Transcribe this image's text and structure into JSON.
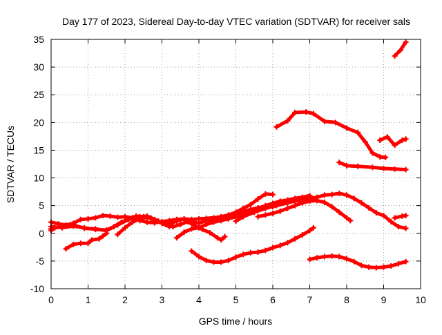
{
  "chart_data": {
    "type": "scatter",
    "title": "Day 177 of 2023, Sidereal Day-to-day VTEC variation (SDTVAR) for receiver sals",
    "xlabel": "GPS time / hours",
    "ylabel": "SDTVAR / TECUs",
    "xlim": [
      0,
      10
    ],
    "ylim": [
      -10,
      35
    ],
    "xticks": [
      "0",
      "1",
      "2",
      "3",
      "4",
      "5",
      "6",
      "7",
      "8",
      "9",
      "10"
    ],
    "yticks": [
      "-10",
      "-5",
      "0",
      "5",
      "10",
      "15",
      "20",
      "25",
      "30",
      "35"
    ],
    "grid": true,
    "legend": "none",
    "color": "#ff0000",
    "series": [
      {
        "name": "s1",
        "points": [
          [
            9.3,
            32
          ],
          [
            9.45,
            33
          ],
          [
            9.6,
            34.5
          ]
        ]
      },
      {
        "name": "s2",
        "points": [
          [
            6.1,
            19.2
          ],
          [
            6.4,
            20.3
          ],
          [
            6.6,
            21.8
          ],
          [
            6.9,
            21.9
          ],
          [
            7.1,
            21.6
          ],
          [
            7.4,
            20.2
          ],
          [
            7.7,
            20.0
          ],
          [
            8.0,
            19.0
          ],
          [
            8.3,
            18.2
          ],
          [
            8.5,
            16.5
          ],
          [
            8.7,
            14.5
          ],
          [
            8.9,
            13.8
          ],
          [
            9.05,
            13.7
          ]
        ]
      },
      {
        "name": "s3",
        "points": [
          [
            8.9,
            16.8
          ],
          [
            9.1,
            17.4
          ],
          [
            9.3,
            15.9
          ],
          [
            9.5,
            16.8
          ],
          [
            9.6,
            17
          ]
        ]
      },
      {
        "name": "s4",
        "points": [
          [
            7.8,
            12.8
          ],
          [
            8.0,
            12.2
          ],
          [
            8.3,
            12.1
          ],
          [
            8.7,
            11.9
          ],
          [
            9.0,
            11.7
          ],
          [
            9.3,
            11.6
          ],
          [
            9.6,
            11.5
          ]
        ]
      },
      {
        "name": "s5",
        "points": [
          [
            0.0,
            2.0
          ],
          [
            0.2,
            1.7
          ],
          [
            0.4,
            1.5
          ],
          [
            0.6,
            1.8
          ],
          [
            0.8,
            2.5
          ],
          [
            1.0,
            2.6
          ],
          [
            1.2,
            2.8
          ],
          [
            1.4,
            3.2
          ],
          [
            1.6,
            3.1
          ],
          [
            1.8,
            2.9
          ],
          [
            2.0,
            3.0
          ],
          [
            2.2,
            2.8
          ],
          [
            2.4,
            2.3
          ],
          [
            2.6,
            2.0
          ],
          [
            2.8,
            1.9
          ],
          [
            3.0,
            2.1
          ],
          [
            3.2,
            2.3
          ],
          [
            3.4,
            2.5
          ],
          [
            3.6,
            2.6
          ],
          [
            3.8,
            2.5
          ],
          [
            4.0,
            2.6
          ],
          [
            4.2,
            2.7
          ],
          [
            4.4,
            2.8
          ],
          [
            4.6,
            3.0
          ],
          [
            4.8,
            3.3
          ],
          [
            5.0,
            3.8
          ],
          [
            5.2,
            4.5
          ],
          [
            5.4,
            5.2
          ],
          [
            5.6,
            6.2
          ],
          [
            5.8,
            7.1
          ],
          [
            6.0,
            7.0
          ]
        ]
      },
      {
        "name": "s6",
        "points": [
          [
            0.0,
            1.2
          ],
          [
            0.3,
            1.0
          ],
          [
            0.6,
            1.3
          ],
          [
            0.9,
            1.0
          ],
          [
            1.2,
            0.7
          ],
          [
            1.5,
            0.6
          ],
          [
            1.7,
            1.2
          ],
          [
            1.9,
            2.0
          ],
          [
            2.1,
            2.6
          ],
          [
            2.3,
            3.1
          ],
          [
            2.5,
            3.0
          ],
          [
            2.7,
            2.8
          ],
          [
            2.9,
            2.2
          ],
          [
            3.1,
            1.6
          ],
          [
            3.3,
            1.2
          ],
          [
            3.5,
            1.6
          ],
          [
            3.7,
            2.1
          ],
          [
            3.9,
            1.3
          ],
          [
            4.1,
            0.7
          ],
          [
            4.3,
            0.1
          ],
          [
            4.5,
            -0.8
          ],
          [
            4.6,
            -1.2
          ],
          [
            4.7,
            -0.6
          ]
        ]
      },
      {
        "name": "s7",
        "points": [
          [
            0.0,
            0.8
          ],
          [
            0.3,
            1.3
          ],
          [
            0.6,
            1.5
          ],
          [
            0.9,
            0.9
          ],
          [
            1.2,
            0.8
          ],
          [
            1.5,
            0.5
          ],
          [
            1.8,
            1.5
          ],
          [
            2.1,
            2.5
          ],
          [
            2.4,
            3.0
          ],
          [
            2.6,
            3.1
          ],
          [
            2.8,
            2.5
          ],
          [
            3.0,
            2.0
          ],
          [
            3.2,
            1.7
          ],
          [
            3.4,
            2.2
          ],
          [
            3.6,
            2.6
          ],
          [
            3.8,
            2.1
          ],
          [
            4.0,
            1.8
          ],
          [
            4.2,
            2.3
          ],
          [
            4.4,
            2.5
          ],
          [
            4.6,
            2.9
          ],
          [
            4.8,
            3.2
          ],
          [
            5.0,
            3.4
          ],
          [
            5.2,
            3.9
          ],
          [
            5.4,
            4.3
          ],
          [
            5.6,
            4.6
          ],
          [
            5.8,
            4.9
          ],
          [
            6.0,
            4.8
          ]
        ]
      },
      {
        "name": "s8",
        "points": [
          [
            0.0,
            0.5
          ],
          [
            0.1,
            1.0
          ]
        ]
      },
      {
        "name": "s9",
        "points": [
          [
            0.4,
            -2.8
          ],
          [
            0.6,
            -2.0
          ],
          [
            0.8,
            -1.8
          ],
          [
            1.0,
            -1.8
          ],
          [
            1.1,
            -1.2
          ],
          [
            1.3,
            -1.0
          ],
          [
            1.4,
            -0.5
          ],
          [
            1.5,
            0.0
          ]
        ]
      },
      {
        "name": "s10",
        "points": [
          [
            1.8,
            -0.2
          ],
          [
            2.0,
            1.0
          ],
          [
            2.2,
            2.0
          ],
          [
            2.4,
            2.6
          ],
          [
            2.6,
            2.9
          ],
          [
            2.8,
            2.4
          ],
          [
            3.0,
            1.8
          ],
          [
            3.2,
            1.2
          ]
        ]
      },
      {
        "name": "s11",
        "points": [
          [
            3.4,
            -0.8
          ],
          [
            3.6,
            0.2
          ],
          [
            3.8,
            0.8
          ],
          [
            4.0,
            1.0
          ],
          [
            4.2,
            1.6
          ],
          [
            4.4,
            2.0
          ],
          [
            4.6,
            2.3
          ],
          [
            4.8,
            2.6
          ],
          [
            5.0,
            3.0
          ],
          [
            5.2,
            3.5
          ],
          [
            5.4,
            4.0
          ],
          [
            5.6,
            4.5
          ],
          [
            5.8,
            5.0
          ],
          [
            6.0,
            5.4
          ],
          [
            6.2,
            5.8
          ],
          [
            6.4,
            6.0
          ],
          [
            6.6,
            6.3
          ],
          [
            6.8,
            6.5
          ],
          [
            7.0,
            6.8
          ]
        ]
      },
      {
        "name": "s12",
        "points": [
          [
            5.0,
            2.2
          ],
          [
            5.2,
            3.0
          ],
          [
            5.5,
            3.8
          ],
          [
            5.8,
            4.5
          ],
          [
            6.1,
            5.0
          ],
          [
            6.4,
            5.5
          ],
          [
            6.6,
            5.8
          ],
          [
            6.8,
            6.0
          ],
          [
            7.0,
            6.3
          ],
          [
            7.2,
            6.5
          ],
          [
            7.4,
            6.9
          ],
          [
            7.6,
            7.0
          ],
          [
            7.8,
            7.2
          ],
          [
            8.0,
            6.9
          ],
          [
            8.2,
            6.3
          ],
          [
            8.4,
            5.5
          ],
          [
            8.6,
            4.6
          ],
          [
            8.8,
            3.7
          ],
          [
            9.0,
            3.2
          ],
          [
            9.2,
            2.1
          ],
          [
            9.4,
            1.2
          ],
          [
            9.6,
            0.9
          ]
        ]
      },
      {
        "name": "s13",
        "points": [
          [
            5.6,
            3.0
          ],
          [
            5.8,
            3.3
          ],
          [
            6.0,
            3.6
          ],
          [
            6.2,
            4.0
          ],
          [
            6.4,
            4.5
          ],
          [
            6.6,
            5.0
          ],
          [
            6.8,
            5.5
          ],
          [
            7.0,
            5.8
          ],
          [
            7.2,
            5.9
          ],
          [
            7.4,
            5.6
          ],
          [
            7.6,
            4.8
          ],
          [
            7.8,
            3.8
          ],
          [
            8.0,
            2.8
          ],
          [
            8.1,
            2.3
          ]
        ]
      },
      {
        "name": "s14",
        "points": [
          [
            9.3,
            2.8
          ],
          [
            9.5,
            3.1
          ],
          [
            9.6,
            3.2
          ]
        ]
      },
      {
        "name": "s15",
        "points": [
          [
            3.8,
            -3.2
          ],
          [
            4.0,
            -4.2
          ],
          [
            4.2,
            -4.9
          ],
          [
            4.4,
            -5.2
          ],
          [
            4.6,
            -5.2
          ],
          [
            4.8,
            -4.9
          ],
          [
            5.0,
            -4.3
          ],
          [
            5.2,
            -3.8
          ],
          [
            5.4,
            -3.5
          ],
          [
            5.6,
            -3.4
          ],
          [
            5.8,
            -3.1
          ],
          [
            6.0,
            -2.6
          ],
          [
            6.2,
            -2.2
          ],
          [
            6.4,
            -1.7
          ],
          [
            6.6,
            -1.0
          ],
          [
            6.8,
            -0.3
          ],
          [
            7.0,
            0.5
          ],
          [
            7.1,
            1.0
          ]
        ]
      },
      {
        "name": "s16",
        "points": [
          [
            7.0,
            -4.7
          ],
          [
            7.2,
            -4.4
          ],
          [
            7.4,
            -4.2
          ],
          [
            7.6,
            -4.1
          ],
          [
            7.8,
            -4.2
          ],
          [
            8.0,
            -4.6
          ],
          [
            8.2,
            -5.1
          ],
          [
            8.4,
            -5.8
          ],
          [
            8.6,
            -6.1
          ],
          [
            8.8,
            -6.2
          ],
          [
            9.0,
            -6.1
          ],
          [
            9.2,
            -5.9
          ],
          [
            9.4,
            -5.5
          ],
          [
            9.6,
            -5.1
          ]
        ]
      }
    ]
  }
}
